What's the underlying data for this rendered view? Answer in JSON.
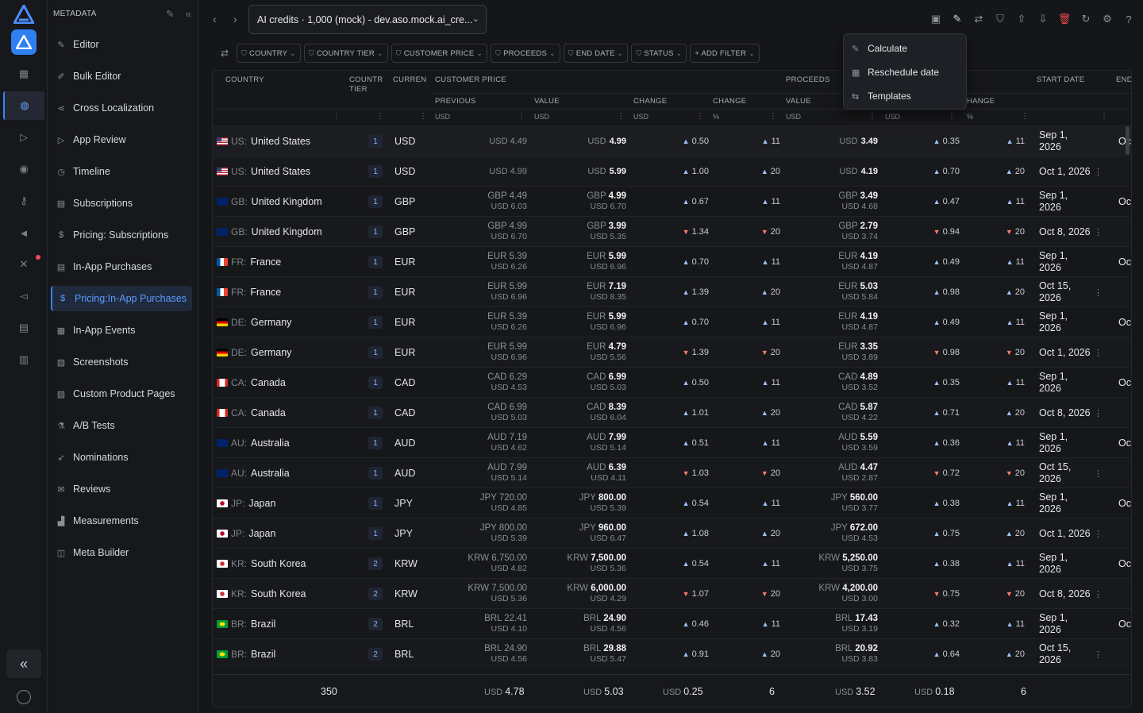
{
  "sidebar": {
    "header": "METADATA",
    "items": [
      {
        "label": "Editor",
        "icon": "pencil-icon"
      },
      {
        "label": "Bulk Editor",
        "icon": "edit-box-icon"
      },
      {
        "label": "Cross Localization",
        "icon": "share-icon"
      },
      {
        "label": "App Review",
        "icon": "send-icon"
      },
      {
        "label": "Timeline",
        "icon": "history-icon"
      },
      {
        "label": "Subscriptions",
        "icon": "document-icon"
      },
      {
        "label": "Pricing: Subscriptions",
        "icon": "dollar-circle-icon"
      },
      {
        "label": "In-App Purchases",
        "icon": "document-icon"
      },
      {
        "label": "Pricing:In-App Purchases",
        "icon": "dollar-circle-icon",
        "active": true
      },
      {
        "label": "In-App Events",
        "icon": "calendar-icon"
      },
      {
        "label": "Screenshots",
        "icon": "image-icon"
      },
      {
        "label": "Custom Product Pages",
        "icon": "pages-icon"
      },
      {
        "label": "A/B Tests",
        "icon": "flask-icon"
      },
      {
        "label": "Nominations",
        "icon": "rocket-icon"
      },
      {
        "label": "Reviews",
        "icon": "review-icon"
      },
      {
        "label": "Measurements",
        "icon": "chart-icon"
      },
      {
        "label": "Meta Builder",
        "icon": "layers-icon"
      }
    ]
  },
  "topbar": {
    "app_selector": "AI credits · 1,000 (mock) - dev.aso.mock.ai_cre...",
    "icons": [
      "save-icon",
      "edit-icon",
      "swap-icon",
      "filter-icon",
      "upload-icon",
      "download-icon",
      "trash-icon",
      "refresh-icon",
      "settings-icon",
      "help-icon"
    ]
  },
  "filters": {
    "chips": [
      "COUNTRY",
      "COUNTRY TIER",
      "CUSTOMER PRICE",
      "PROCEEDS",
      "END DATE",
      "STATUS",
      "+ ADD FILTER"
    ]
  },
  "context_menu": {
    "items": [
      {
        "label": "Calculate",
        "icon": "pencil-icon"
      },
      {
        "label": "Reschedule date",
        "icon": "calendar-icon"
      },
      {
        "label": "Templates",
        "icon": "template-icon"
      }
    ]
  },
  "table": {
    "headers": {
      "country": "COUNTRY",
      "tier_1": "COUNTR",
      "tier_2": "TIER",
      "currency": "CURREN",
      "customer_price": "CUSTOMER PRICE",
      "proceeds": "PROCEEDS",
      "start_date": "START DATE",
      "end": "END"
    },
    "subheaders": {
      "previous": "PREVIOUS",
      "value": "VALUE",
      "change": "CHANGE",
      "change2": "CHANGE",
      "pvalue": "VALUE",
      "pchange2": "HANGE"
    },
    "units": {
      "usd": "USD",
      "pct": "%"
    },
    "rows": [
      {
        "flag": "US",
        "cc": "US:",
        "country": "United States",
        "tier": "1",
        "cur": "USD",
        "prev1": "USD 4.49",
        "prev2": "",
        "valc": "USD",
        "valv": "4.99",
        "val2": "",
        "chg": "0.50",
        "dir": "up",
        "pct": "11",
        "prc": "USD",
        "prv": "3.49",
        "prc2": "",
        "pchg": "0.35",
        "ppct": "11",
        "date": "Sep 1, 2026",
        "extra": "Oc"
      },
      {
        "flag": "US",
        "cc": "US:",
        "country": "United States",
        "tier": "1",
        "cur": "USD",
        "prev1": "USD 4.99",
        "prev2": "",
        "valc": "USD",
        "valv": "5.99",
        "val2": "",
        "chg": "1.00",
        "dir": "up",
        "pct": "20",
        "prc": "USD",
        "prv": "4.19",
        "prc2": "",
        "pchg": "0.70",
        "ppct": "20",
        "date": "Oct 1, 2026",
        "extra": "⋮"
      },
      {
        "flag": "GB",
        "cc": "GB:",
        "country": "United Kingdom",
        "tier": "1",
        "cur": "GBP",
        "prev1": "GBP 4.49",
        "prev2": "USD 6.03",
        "valc": "GBP",
        "valv": "4.99",
        "val2": "USD 6.70",
        "chg": "0.67",
        "dir": "up",
        "pct": "11",
        "prc": "GBP",
        "prv": "3.49",
        "prc2": "USD 4.68",
        "pchg": "0.47",
        "ppct": "11",
        "date": "Sep 1, 2026",
        "extra": "Oc"
      },
      {
        "flag": "GB",
        "cc": "GB:",
        "country": "United Kingdom",
        "tier": "1",
        "cur": "GBP",
        "prev1": "GBP 4.99",
        "prev2": "USD 6.70",
        "valc": "GBP",
        "valv": "3.99",
        "val2": "USD 5.35",
        "chg": "1.34",
        "dir": "dn",
        "pct": "20",
        "prc": "GBP",
        "prv": "2.79",
        "prc2": "USD 3.74",
        "pchg": "0.94",
        "ppct": "20",
        "date": "Oct 8, 2026",
        "extra": "⋮"
      },
      {
        "flag": "FR",
        "cc": "FR:",
        "country": "France",
        "tier": "1",
        "cur": "EUR",
        "prev1": "EUR 5.39",
        "prev2": "USD 6.26",
        "valc": "EUR",
        "valv": "5.99",
        "val2": "USD 6.96",
        "chg": "0.70",
        "dir": "up",
        "pct": "11",
        "prc": "EUR",
        "prv": "4.19",
        "prc2": "USD 4.87",
        "pchg": "0.49",
        "ppct": "11",
        "date": "Sep 1, 2026",
        "extra": "Oc"
      },
      {
        "flag": "FR",
        "cc": "FR:",
        "country": "France",
        "tier": "1",
        "cur": "EUR",
        "prev1": "EUR 5.99",
        "prev2": "USD 6.96",
        "valc": "EUR",
        "valv": "7.19",
        "val2": "USD 8.35",
        "chg": "1.39",
        "dir": "up",
        "pct": "20",
        "prc": "EUR",
        "prv": "5.03",
        "prc2": "USD 5.84",
        "pchg": "0.98",
        "ppct": "20",
        "date": "Oct 15, 2026",
        "extra": "⋮"
      },
      {
        "flag": "DE",
        "cc": "DE:",
        "country": "Germany",
        "tier": "1",
        "cur": "EUR",
        "prev1": "EUR 5.39",
        "prev2": "USD 6.26",
        "valc": "EUR",
        "valv": "5.99",
        "val2": "USD 6.96",
        "chg": "0.70",
        "dir": "up",
        "pct": "11",
        "prc": "EUR",
        "prv": "4.19",
        "prc2": "USD 4.87",
        "pchg": "0.49",
        "ppct": "11",
        "date": "Sep 1, 2026",
        "extra": "Oc"
      },
      {
        "flag": "DE",
        "cc": "DE:",
        "country": "Germany",
        "tier": "1",
        "cur": "EUR",
        "prev1": "EUR 5.99",
        "prev2": "USD 6.96",
        "valc": "EUR",
        "valv": "4.79",
        "val2": "USD 5.56",
        "chg": "1.39",
        "dir": "dn",
        "pct": "20",
        "prc": "EUR",
        "prv": "3.35",
        "prc2": "USD 3.89",
        "pchg": "0.98",
        "ppct": "20",
        "date": "Oct 1, 2026",
        "extra": "⋮"
      },
      {
        "flag": "CA",
        "cc": "CA:",
        "country": "Canada",
        "tier": "1",
        "cur": "CAD",
        "prev1": "CAD 6.29",
        "prev2": "USD 4.53",
        "valc": "CAD",
        "valv": "6.99",
        "val2": "USD 5.03",
        "chg": "0.50",
        "dir": "up",
        "pct": "11",
        "prc": "CAD",
        "prv": "4.89",
        "prc2": "USD 3.52",
        "pchg": "0.35",
        "ppct": "11",
        "date": "Sep 1, 2026",
        "extra": "Oc"
      },
      {
        "flag": "CA",
        "cc": "CA:",
        "country": "Canada",
        "tier": "1",
        "cur": "CAD",
        "prev1": "CAD 6.99",
        "prev2": "USD 5.03",
        "valc": "CAD",
        "valv": "8.39",
        "val2": "USD 6.04",
        "chg": "1.01",
        "dir": "up",
        "pct": "20",
        "prc": "CAD",
        "prv": "5.87",
        "prc2": "USD 4.22",
        "pchg": "0.71",
        "ppct": "20",
        "date": "Oct 8, 2026",
        "extra": "⋮"
      },
      {
        "flag": "AU",
        "cc": "AU:",
        "country": "Australia",
        "tier": "1",
        "cur": "AUD",
        "prev1": "AUD 7.19",
        "prev2": "USD 4.62",
        "valc": "AUD",
        "valv": "7.99",
        "val2": "USD 5.14",
        "chg": "0.51",
        "dir": "up",
        "pct": "11",
        "prc": "AUD",
        "prv": "5.59",
        "prc2": "USD 3.59",
        "pchg": "0.36",
        "ppct": "11",
        "date": "Sep 1, 2026",
        "extra": "Oc"
      },
      {
        "flag": "AU",
        "cc": "AU:",
        "country": "Australia",
        "tier": "1",
        "cur": "AUD",
        "prev1": "AUD 7.99",
        "prev2": "USD 5.14",
        "valc": "AUD",
        "valv": "6.39",
        "val2": "USD 4.11",
        "chg": "1.03",
        "dir": "dn",
        "pct": "20",
        "prc": "AUD",
        "prv": "4.47",
        "prc2": "USD 2.87",
        "pchg": "0.72",
        "ppct": "20",
        "date": "Oct 15, 2026",
        "extra": "⋮"
      },
      {
        "flag": "JP",
        "cc": "JP:",
        "country": "Japan",
        "tier": "1",
        "cur": "JPY",
        "prev1": "JPY 720.00",
        "prev2": "USD 4.85",
        "valc": "JPY",
        "valv": "800.00",
        "val2": "USD 5.39",
        "chg": "0.54",
        "dir": "up",
        "pct": "11",
        "prc": "JPY",
        "prv": "560.00",
        "prc2": "USD 3.77",
        "pchg": "0.38",
        "ppct": "11",
        "date": "Sep 1, 2026",
        "extra": "Oc"
      },
      {
        "flag": "JP",
        "cc": "JP:",
        "country": "Japan",
        "tier": "1",
        "cur": "JPY",
        "prev1": "JPY 800.00",
        "prev2": "USD 5.39",
        "valc": "JPY",
        "valv": "960.00",
        "val2": "USD 6.47",
        "chg": "1.08",
        "dir": "up",
        "pct": "20",
        "prc": "JPY",
        "prv": "672.00",
        "prc2": "USD 4.53",
        "pchg": "0.75",
        "ppct": "20",
        "date": "Oct 1, 2026",
        "extra": "⋮"
      },
      {
        "flag": "KR",
        "cc": "KR:",
        "country": "South Korea",
        "tier": "2",
        "cur": "KRW",
        "prev1": "KRW 6,750.00",
        "prev2": "USD 4.82",
        "valc": "KRW",
        "valv": "7,500.00",
        "val2": "USD 5.36",
        "chg": "0.54",
        "dir": "up",
        "pct": "11",
        "prc": "KRW",
        "prv": "5,250.00",
        "prc2": "USD 3.75",
        "pchg": "0.38",
        "ppct": "11",
        "date": "Sep 1, 2026",
        "extra": "Oc"
      },
      {
        "flag": "KR",
        "cc": "KR:",
        "country": "South Korea",
        "tier": "2",
        "cur": "KRW",
        "prev1": "KRW 7,500.00",
        "prev2": "USD 5.36",
        "valc": "KRW",
        "valv": "6,000.00",
        "val2": "USD 4.29",
        "chg": "1.07",
        "dir": "dn",
        "pct": "20",
        "prc": "KRW",
        "prv": "4,200.00",
        "prc2": "USD 3.00",
        "pchg": "0.75",
        "ppct": "20",
        "date": "Oct 8, 2026",
        "extra": "⋮"
      },
      {
        "flag": "BR",
        "cc": "BR:",
        "country": "Brazil",
        "tier": "2",
        "cur": "BRL",
        "prev1": "BRL 22.41",
        "prev2": "USD 4.10",
        "valc": "BRL",
        "valv": "24.90",
        "val2": "USD 4.56",
        "chg": "0.46",
        "dir": "up",
        "pct": "11",
        "prc": "BRL",
        "prv": "17.43",
        "prc2": "USD 3.19",
        "pchg": "0.32",
        "ppct": "11",
        "date": "Sep 1, 2026",
        "extra": "Oc"
      },
      {
        "flag": "BR",
        "cc": "BR:",
        "country": "Brazil",
        "tier": "2",
        "cur": "BRL",
        "prev1": "BRL 24.90",
        "prev2": "USD 4.56",
        "valc": "BRL",
        "valv": "29.88",
        "val2": "USD 5.47",
        "chg": "0.91",
        "dir": "up",
        "pct": "20",
        "prc": "BRL",
        "prv": "20.92",
        "prc2": "USD 3.83",
        "pchg": "0.64",
        "ppct": "20",
        "date": "Oct 15, 2026",
        "extra": "⋮"
      }
    ],
    "footer": {
      "count": "350",
      "prev": "4.78",
      "value": "5.03",
      "change": "0.25",
      "pct": "6",
      "proceeds": "3.52",
      "pchange": "0.18",
      "ppct": "6",
      "unit": "USD"
    }
  },
  "colors": {
    "accent": "#3b82f6",
    "up": "#9fc0ff",
    "down": "#ff7a6e",
    "delete": "#e5484d"
  }
}
